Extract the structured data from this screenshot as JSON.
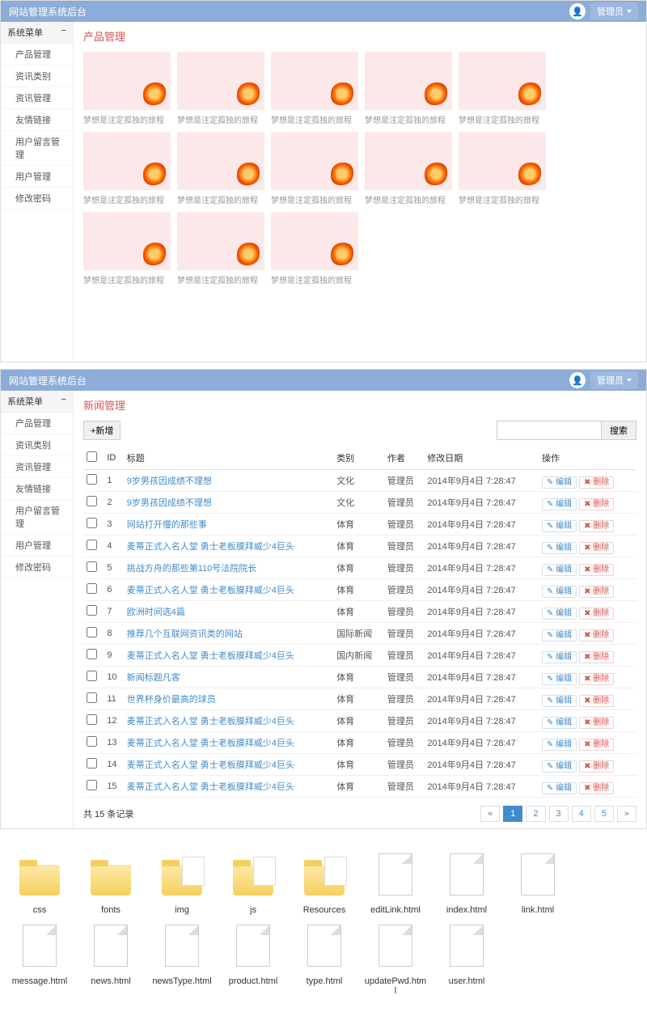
{
  "brand": "网站管理系统后台",
  "user_label": "管理员",
  "sidebar_header": "系统菜单",
  "menu": [
    "产品管理",
    "资讯类别",
    "资讯管理",
    "友情链接",
    "用户留言管理",
    "用户管理",
    "修改密码"
  ],
  "p1_title": "产品管理",
  "card_caption": "梦想是注定孤独的旅程",
  "card_count": 13,
  "p2_title": "新闻管理",
  "btn_add": "+新增",
  "btn_search": "搜索",
  "cols": [
    "",
    "ID",
    "标题",
    "类别",
    "作者",
    "修改日期",
    "操作"
  ],
  "op_edit": "✎ 编辑",
  "op_del": "✖ 删除",
  "rows": [
    {
      "id": "1",
      "title": "9岁男孩因成绩不理想",
      "cat": "文化",
      "auth": "管理员",
      "date": "2014年9月4日 7:28:47"
    },
    {
      "id": "2",
      "title": "9岁男孩因成绩不理想",
      "cat": "文化",
      "auth": "管理员",
      "date": "2014年9月4日 7:28:47"
    },
    {
      "id": "3",
      "title": "网站打开慢的那些事",
      "cat": "体育",
      "auth": "管理员",
      "date": "2014年9月4日 7:28:47"
    },
    {
      "id": "4",
      "title": "麦蒂正式入名人堂 勇士老板膜拜威少4巨头",
      "cat": "体育",
      "auth": "管理员",
      "date": "2014年9月4日 7:28:47"
    },
    {
      "id": "5",
      "title": "挑战方舟的那些第110号法院院长",
      "cat": "体育",
      "auth": "管理员",
      "date": "2014年9月4日 7:28:47"
    },
    {
      "id": "6",
      "title": "麦蒂正式入名人堂 勇士老板膜拜威少4巨头",
      "cat": "体育",
      "auth": "管理员",
      "date": "2014年9月4日 7:28:47"
    },
    {
      "id": "7",
      "title": "欧洲时间选4篇",
      "cat": "体育",
      "auth": "管理员",
      "date": "2014年9月4日 7:28:47"
    },
    {
      "id": "8",
      "title": "推荐几个互联网资讯类的网站",
      "cat": "国际新闻",
      "auth": "管理员",
      "date": "2014年9月4日 7:28:47"
    },
    {
      "id": "9",
      "title": "麦蒂正式入名人堂 勇士老板膜拜威少4巨头",
      "cat": "国内新闻",
      "auth": "管理员",
      "date": "2014年9月4日 7:28:47"
    },
    {
      "id": "10",
      "title": "新闻标题凡客",
      "cat": "体育",
      "auth": "管理员",
      "date": "2014年9月4日 7:28:47"
    },
    {
      "id": "11",
      "title": "世界杯身价最高的球员",
      "cat": "体育",
      "auth": "管理员",
      "date": "2014年9月4日 7:28:47"
    },
    {
      "id": "12",
      "title": "麦蒂正式入名人堂 勇士老板膜拜威少4巨头",
      "cat": "体育",
      "auth": "管理员",
      "date": "2014年9月4日 7:28:47"
    },
    {
      "id": "13",
      "title": "麦蒂正式入名人堂 勇士老板膜拜威少4巨头",
      "cat": "体育",
      "auth": "管理员",
      "date": "2014年9月4日 7:28:47"
    },
    {
      "id": "14",
      "title": "麦蒂正式入名人堂 勇士老板膜拜威少4巨头",
      "cat": "体育",
      "auth": "管理员",
      "date": "2014年9月4日 7:28:47"
    },
    {
      "id": "15",
      "title": "麦蒂正式入名人堂 勇士老板膜拜威少4巨头",
      "cat": "体育",
      "auth": "管理员",
      "date": "2014年9月4日 7:28:47"
    }
  ],
  "record_text": "共 15 条记录",
  "pages": [
    "«",
    "1",
    "2",
    "3",
    "4",
    "5",
    "»"
  ],
  "active_page": 1,
  "files": [
    {
      "name": "css",
      "type": "folder"
    },
    {
      "name": "fonts",
      "type": "folder"
    },
    {
      "name": "img",
      "type": "folder-paper"
    },
    {
      "name": "js",
      "type": "folder-paper"
    },
    {
      "name": "Resources",
      "type": "folder-paper"
    },
    {
      "name": "editLink.html",
      "type": "doc"
    },
    {
      "name": "index.html",
      "type": "doc"
    },
    {
      "name": "link.html",
      "type": "doc"
    },
    {
      "name": "message.html",
      "type": "doc"
    },
    {
      "name": "news.html",
      "type": "doc"
    },
    {
      "name": "newsType.html",
      "type": "doc"
    },
    {
      "name": "product.html",
      "type": "doc"
    },
    {
      "name": "type.html",
      "type": "doc"
    },
    {
      "name": "updatePwd.html",
      "type": "doc"
    },
    {
      "name": "user.html",
      "type": "doc"
    }
  ]
}
